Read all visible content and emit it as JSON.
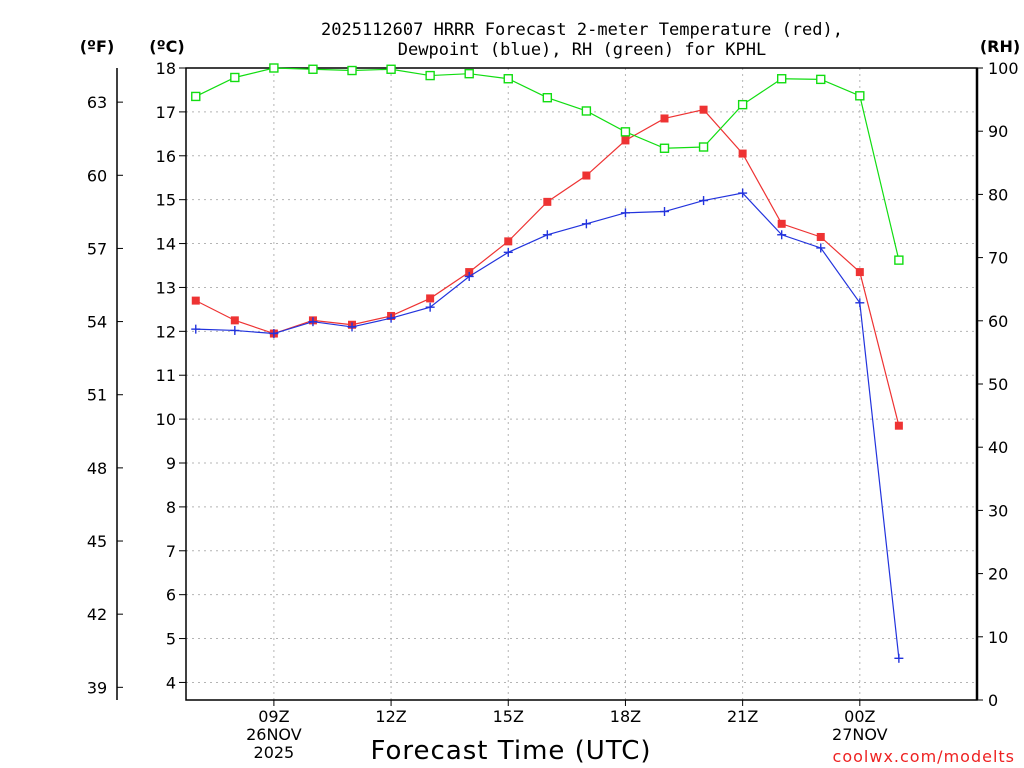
{
  "chart_data": {
    "type": "line",
    "title_line1": "2025112607 HRRR Forecast 2-meter Temperature (red),",
    "title_line2": "Dewpoint (blue), RH (green) for KPHL",
    "xlabel": "Forecast Time (UTC)",
    "credit": "coolwx.com/modelts",
    "units": {
      "fahrenheit": "(ºF)",
      "celsius": "(ºC)",
      "rh": "(RH)"
    },
    "x_range": [
      6.75,
      27
    ],
    "x_ticks": [
      {
        "x": 9,
        "lines": [
          "09Z",
          "26NOV",
          "2025"
        ]
      },
      {
        "x": 12,
        "lines": [
          "12Z"
        ]
      },
      {
        "x": 15,
        "lines": [
          "15Z"
        ]
      },
      {
        "x": 18,
        "lines": [
          "18Z"
        ]
      },
      {
        "x": 21,
        "lines": [
          "21Z"
        ]
      },
      {
        "x": 24,
        "lines": [
          "00Z",
          "27NOV"
        ]
      }
    ],
    "c_range": [
      3.6,
      18
    ],
    "c_ticks": [
      4,
      5,
      6,
      7,
      8,
      9,
      10,
      11,
      12,
      13,
      14,
      15,
      16,
      17,
      18
    ],
    "f_ticks": [
      39,
      42,
      45,
      48,
      51,
      54,
      57,
      60,
      63
    ],
    "rh_range": [
      0,
      100
    ],
    "rh_ticks": [
      0,
      10,
      20,
      30,
      40,
      50,
      60,
      70,
      80,
      90,
      100
    ],
    "hours": [
      7,
      8,
      9,
      10,
      11,
      12,
      13,
      14,
      15,
      16,
      17,
      18,
      19,
      20,
      21,
      22,
      23,
      24,
      25
    ],
    "series": [
      {
        "name": "Temperature",
        "units": "C",
        "color": "#ee3333",
        "marker": "filled-square",
        "values": [
          12.7,
          12.25,
          11.95,
          12.25,
          12.15,
          12.35,
          12.75,
          13.35,
          14.05,
          14.95,
          15.55,
          16.35,
          16.85,
          17.05,
          16.05,
          14.45,
          14.15,
          13.35,
          9.85
        ]
      },
      {
        "name": "Dewpoint",
        "units": "C",
        "color": "#2233dd",
        "marker": "plus",
        "values": [
          12.05,
          12.02,
          11.95,
          12.22,
          12.1,
          12.3,
          12.55,
          13.25,
          13.8,
          14.2,
          14.45,
          14.7,
          14.73,
          14.98,
          15.15,
          14.2,
          13.9,
          12.65,
          4.55
        ]
      },
      {
        "name": "RH",
        "units": "%",
        "color": "#11dd11",
        "marker": "open-square",
        "values": [
          95.5,
          98.5,
          100,
          99.8,
          99.6,
          99.8,
          98.8,
          99.1,
          98.3,
          95.3,
          93.2,
          89.9,
          87.3,
          87.5,
          94.2,
          98.3,
          98.2,
          95.6,
          69.6
        ]
      }
    ]
  }
}
